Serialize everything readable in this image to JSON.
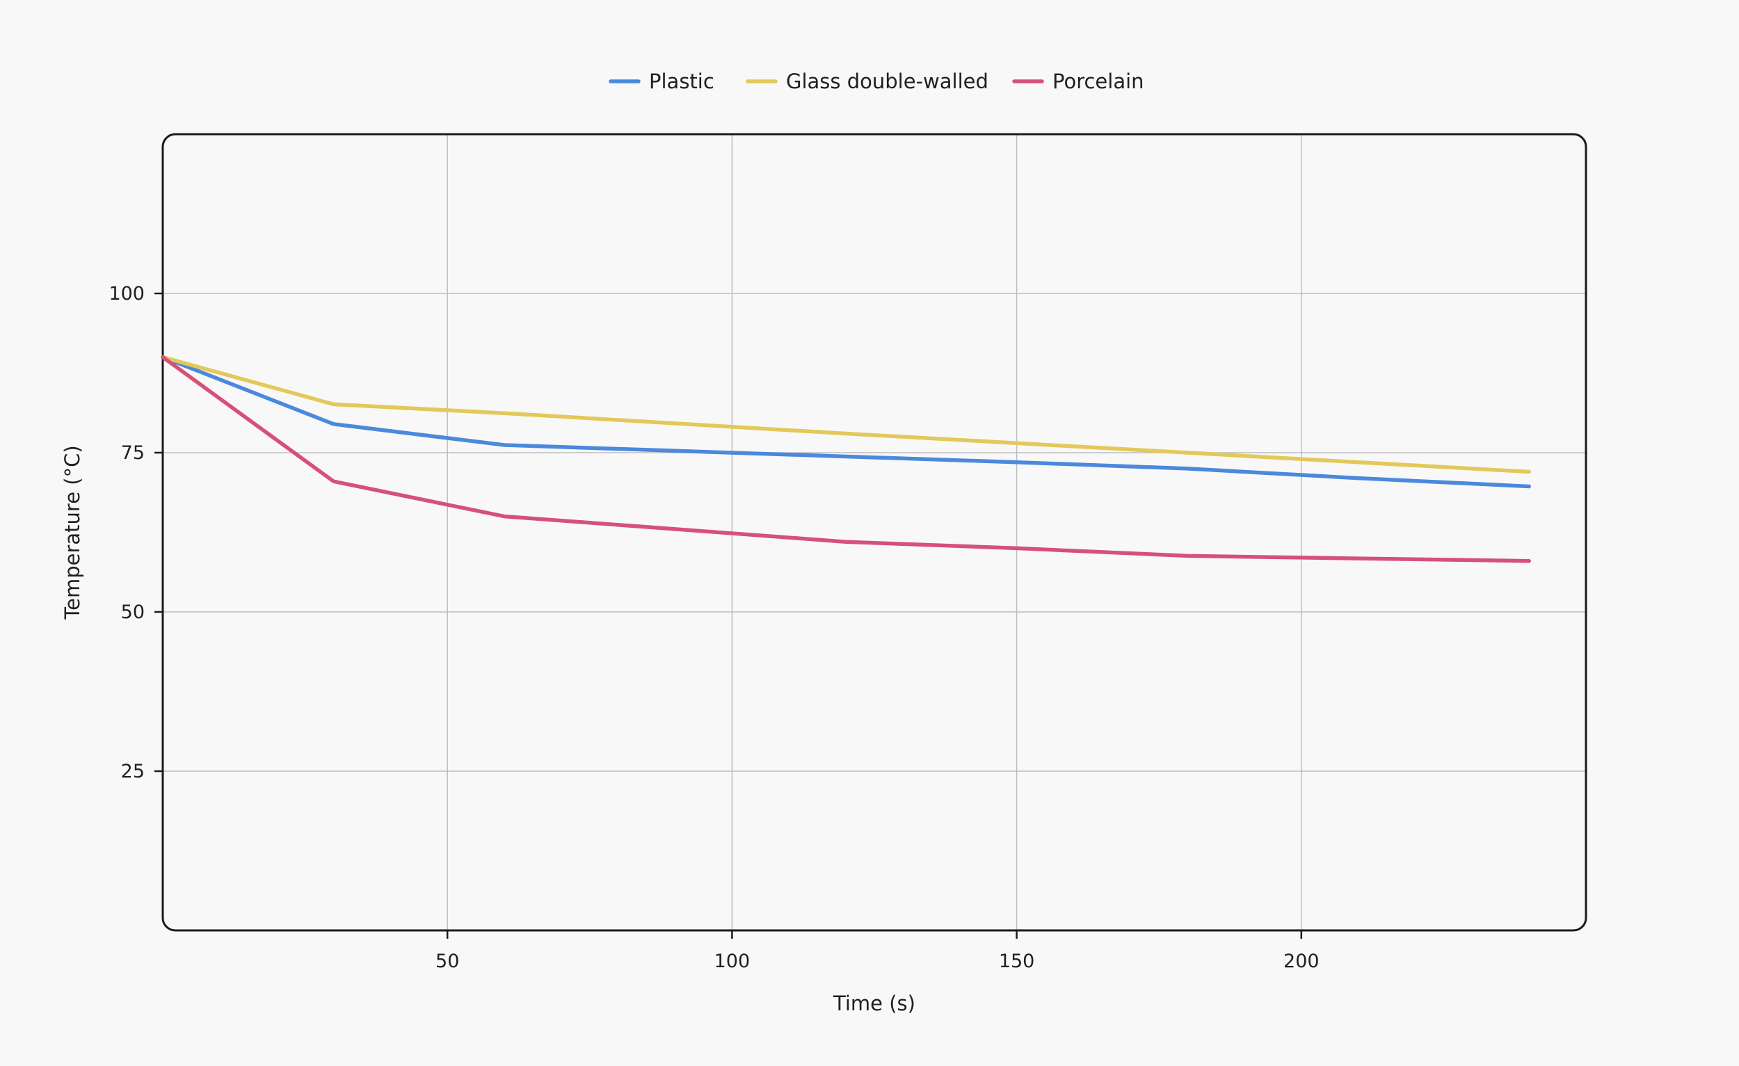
{
  "chart_data": {
    "type": "line",
    "xlabel": "Time (s)",
    "ylabel": "Temperature (°C)",
    "xlim": [
      0,
      250
    ],
    "ylim": [
      0,
      125
    ],
    "x_ticks": [
      50,
      100,
      150,
      200
    ],
    "y_ticks": [
      25,
      50,
      75,
      100
    ],
    "grid": true,
    "legend_position": "top-center",
    "series": [
      {
        "name": "Plastic",
        "color": "#4a89dc",
        "points": [
          [
            0,
            90
          ],
          [
            30,
            79.5
          ],
          [
            60,
            76.2
          ],
          [
            90,
            75.3
          ],
          [
            120,
            74.4
          ],
          [
            150,
            73.5
          ],
          [
            180,
            72.5
          ],
          [
            210,
            71
          ],
          [
            240,
            69.7
          ]
        ]
      },
      {
        "name": "Glass double-walled",
        "color": "#e3c85a",
        "points": [
          [
            0,
            90
          ],
          [
            30,
            82.6
          ],
          [
            60,
            81.2
          ],
          [
            90,
            79.6
          ],
          [
            120,
            78
          ],
          [
            150,
            76.5
          ],
          [
            180,
            75
          ],
          [
            210,
            73.5
          ],
          [
            240,
            72
          ]
        ]
      },
      {
        "name": "Porcelain",
        "color": "#d6507c",
        "points": [
          [
            0,
            90
          ],
          [
            30,
            70.5
          ],
          [
            60,
            65
          ],
          [
            90,
            63
          ],
          [
            120,
            61
          ],
          [
            150,
            60
          ],
          [
            180,
            58.8
          ],
          [
            210,
            58.4
          ],
          [
            240,
            58
          ]
        ]
      }
    ]
  }
}
